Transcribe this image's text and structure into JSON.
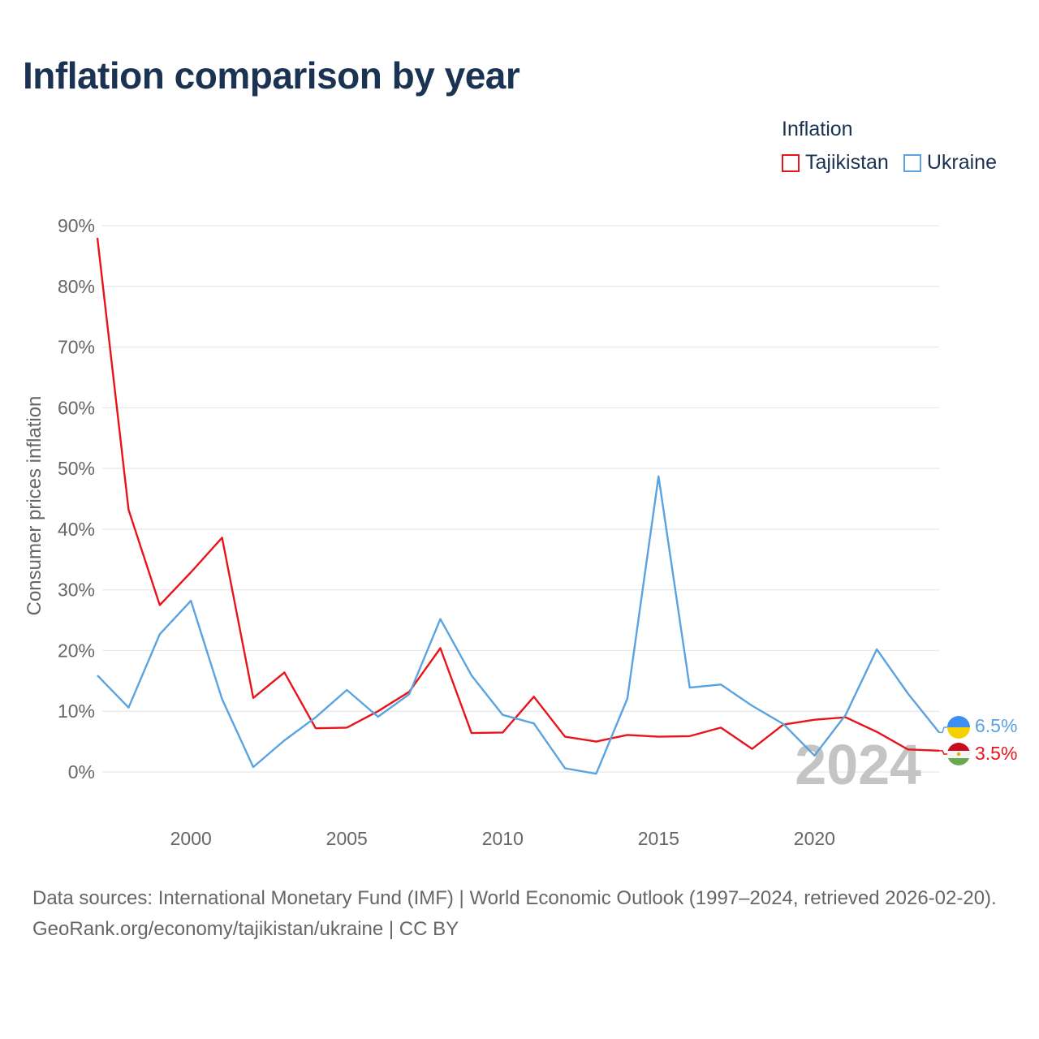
{
  "title": "Inflation comparison by year",
  "legend": {
    "title": "Inflation",
    "items": [
      {
        "name": "Tajikistan",
        "color": "#e8141b"
      },
      {
        "name": "Ukraine",
        "color": "#5aa3e0"
      }
    ]
  },
  "chart_data": {
    "type": "line",
    "title": "Inflation comparison by year",
    "ylabel": "Consumer prices inflation",
    "xlabel": "",
    "x": [
      1997,
      1998,
      1999,
      2000,
      2001,
      2002,
      2003,
      2004,
      2005,
      2006,
      2007,
      2008,
      2009,
      2010,
      2011,
      2012,
      2013,
      2014,
      2015,
      2016,
      2017,
      2018,
      2019,
      2020,
      2021,
      2022,
      2023,
      2024
    ],
    "xlim": [
      1997,
      2024
    ],
    "ylim": [
      -4,
      90
    ],
    "yticks": [
      0,
      10,
      20,
      30,
      40,
      50,
      60,
      70,
      80,
      90
    ],
    "ytick_labels": [
      "0%",
      "10%",
      "20%",
      "30%",
      "40%",
      "50%",
      "60%",
      "70%",
      "80%",
      "90%"
    ],
    "xticks": [
      2000,
      2005,
      2010,
      2015,
      2020
    ],
    "xtick_labels": [
      "2000",
      "2005",
      "2010",
      "2015",
      "2020"
    ],
    "series": [
      {
        "name": "Tajikistan",
        "color": "#e8141b",
        "values": [
          88.0,
          43.2,
          27.5,
          32.9,
          38.6,
          12.2,
          16.4,
          7.2,
          7.3,
          10.0,
          13.2,
          20.4,
          6.4,
          6.5,
          12.4,
          5.8,
          5.0,
          6.1,
          5.8,
          5.9,
          7.3,
          3.8,
          7.8,
          8.6,
          9.0,
          6.6,
          3.7,
          3.5
        ],
        "end_label": "3.5%"
      },
      {
        "name": "Ukraine",
        "color": "#5aa3e0",
        "values": [
          15.9,
          10.6,
          22.7,
          28.2,
          12.0,
          0.8,
          5.2,
          9.0,
          13.5,
          9.1,
          12.8,
          25.2,
          15.9,
          9.4,
          8.0,
          0.6,
          -0.3,
          12.1,
          48.7,
          13.9,
          14.4,
          10.9,
          7.9,
          2.7,
          9.4,
          20.2,
          12.9,
          6.5
        ],
        "end_label": "6.5%"
      }
    ],
    "watermark": "2024",
    "grid": true
  },
  "footer": {
    "line1": "Data sources: International Monetary Fund (IMF) | World Economic Outlook (1997–2024, retrieved 2026-02-20).",
    "line2": "GeoRank.org/economy/tajikistan/ukraine | CC BY"
  }
}
